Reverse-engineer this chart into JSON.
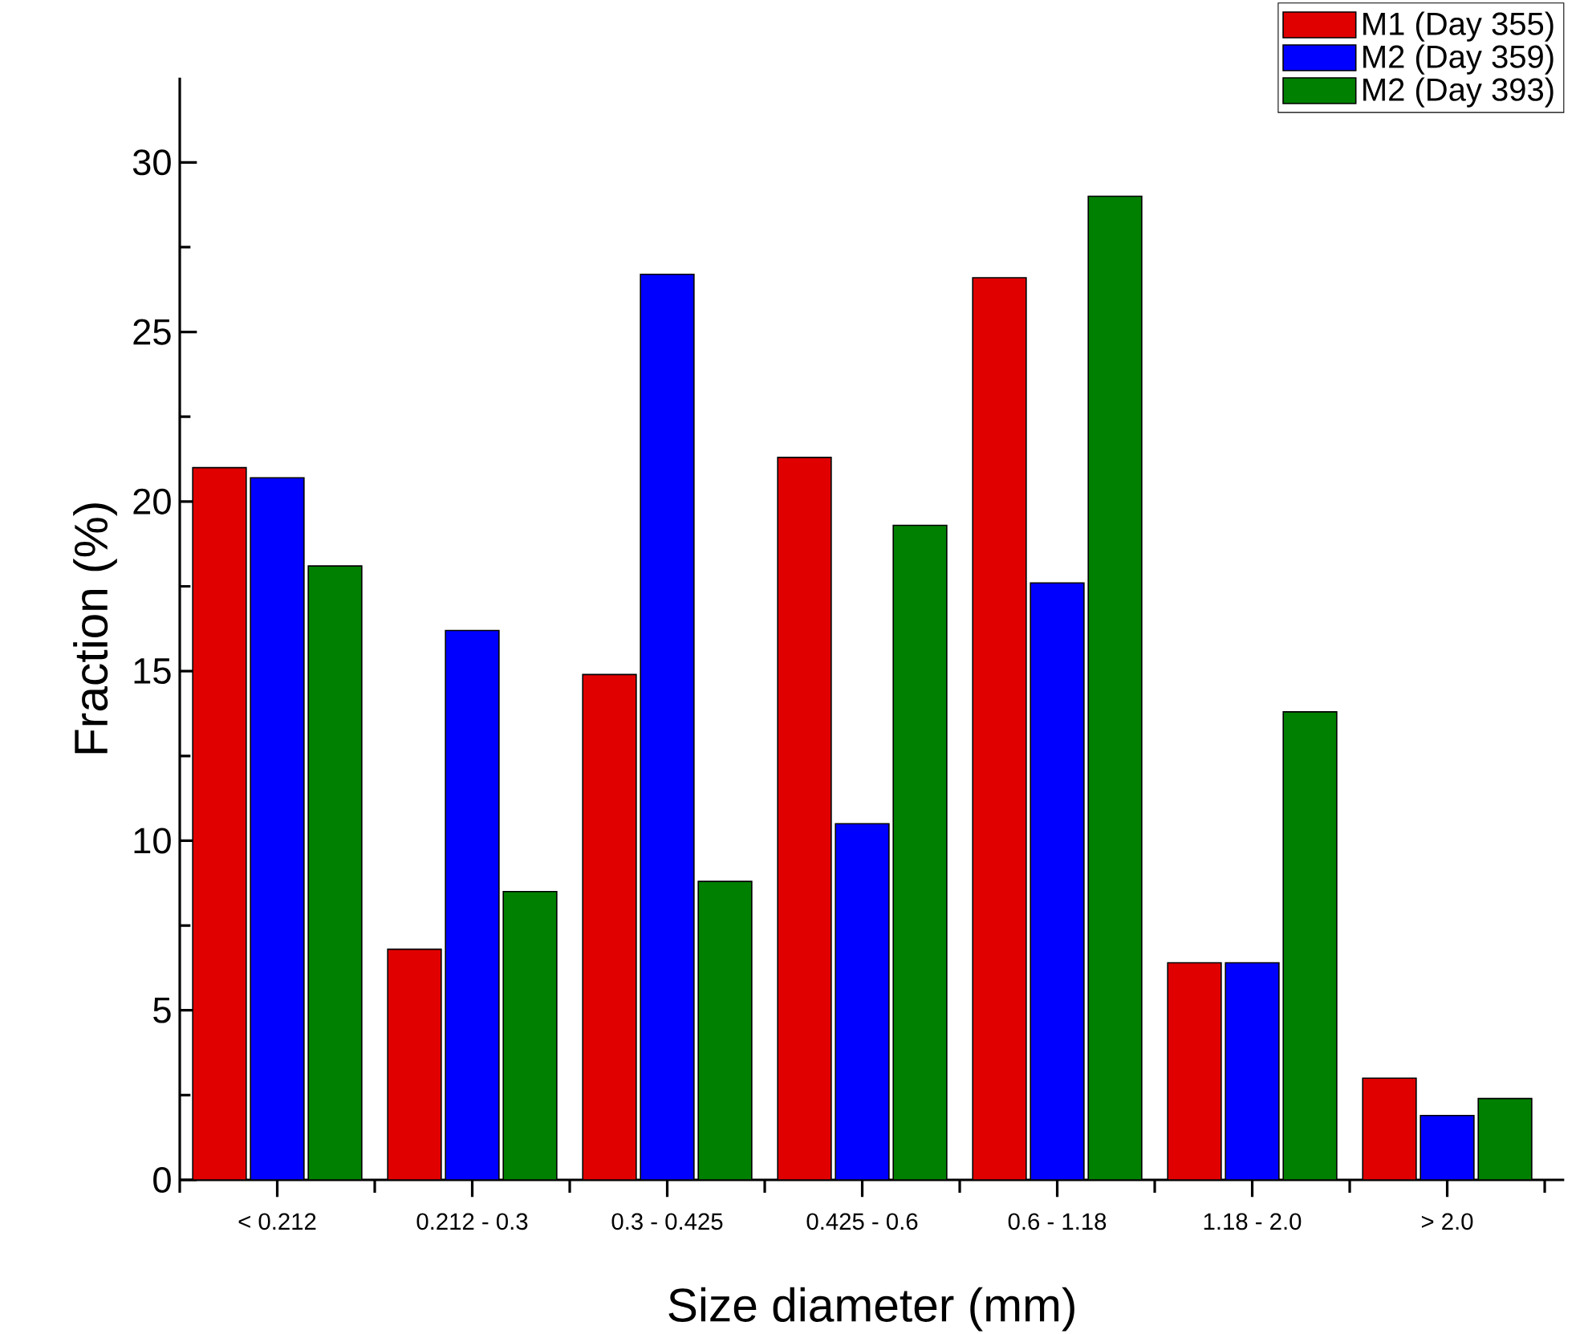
{
  "chart_data": {
    "type": "bar",
    "xlabel": "Size diameter (mm)",
    "ylabel": "Fraction (%)",
    "categories": [
      "< 0.212",
      "0.212 - 0.3",
      "0.3 - 0.425",
      "0.425 - 0.6",
      "0.6 - 1.18",
      "1.18 - 2.0",
      "> 2.0"
    ],
    "series": [
      {
        "name": "M1 (Day 355)",
        "color": "#e00000",
        "values": [
          21.0,
          6.8,
          14.9,
          21.3,
          26.6,
          6.4,
          3.0
        ]
      },
      {
        "name": "M2 (Day 359)",
        "color": "#0000ff",
        "values": [
          20.7,
          16.2,
          26.7,
          10.5,
          17.6,
          6.4,
          1.9
        ]
      },
      {
        "name": "M2 (Day 393)",
        "color": "#008000",
        "values": [
          18.1,
          8.5,
          8.8,
          19.3,
          29.0,
          13.8,
          2.4
        ]
      }
    ],
    "ylim": [
      0,
      32.5
    ],
    "yticks": [
      0,
      5,
      10,
      15,
      20,
      25,
      30
    ],
    "grid": false,
    "legend": "top right"
  }
}
